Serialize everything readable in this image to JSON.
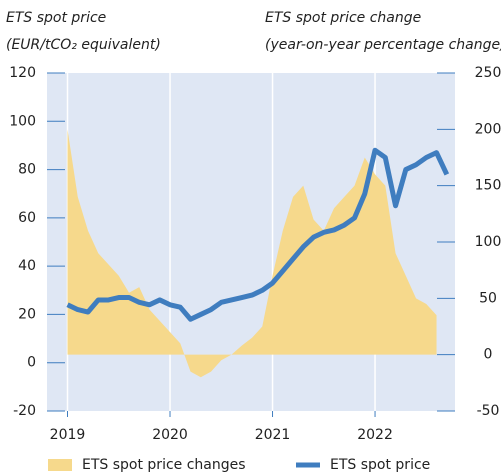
{
  "chart_data": {
    "type": "combo",
    "y_label": [
      "ETS spot price",
      "(EUR/tCO₂ equivalent)"
    ],
    "y2_label": [
      "ETS spot price change",
      "(year-on-year percentage change)"
    ],
    "xlim": [
      2018.8,
      2022.78
    ],
    "xticks": [
      2019,
      2020,
      2021,
      2022
    ],
    "ylim": [
      -20,
      120
    ],
    "yticks": [
      -20,
      0,
      20,
      40,
      60,
      80,
      100,
      120
    ],
    "y2lim": [
      -50,
      250
    ],
    "y2ticks": [
      -50,
      0,
      50,
      100,
      150,
      200,
      250
    ],
    "grid": "x",
    "series": [
      {
        "name": "ETS spot price changes",
        "type": "area",
        "axis": "y2",
        "color": "#f6d98c",
        "x": [
          2019.0,
          2019.1,
          2019.2,
          2019.3,
          2019.4,
          2019.5,
          2019.6,
          2019.7,
          2019.8,
          2019.9,
          2020.0,
          2020.1,
          2020.2,
          2020.3,
          2020.4,
          2020.5,
          2020.6,
          2020.7,
          2020.8,
          2020.9,
          2021.0,
          2021.1,
          2021.2,
          2021.3,
          2021.4,
          2021.5,
          2021.6,
          2021.7,
          2021.8,
          2021.9,
          2022.0,
          2022.1,
          2022.2,
          2022.3,
          2022.4,
          2022.5,
          2022.6
        ],
        "values": [
          200,
          140,
          110,
          90,
          80,
          70,
          55,
          60,
          40,
          30,
          20,
          10,
          -15,
          -20,
          -15,
          -5,
          0,
          8,
          15,
          25,
          70,
          110,
          140,
          150,
          120,
          110,
          130,
          140,
          150,
          175,
          160,
          150,
          90,
          70,
          50,
          45,
          35
        ]
      },
      {
        "name": "ETS spot price",
        "type": "line",
        "axis": "y",
        "color": "#3f7dbf",
        "x": [
          2019.0,
          2019.1,
          2019.2,
          2019.3,
          2019.4,
          2019.5,
          2019.6,
          2019.7,
          2019.8,
          2019.9,
          2020.0,
          2020.1,
          2020.2,
          2020.3,
          2020.4,
          2020.5,
          2020.6,
          2020.7,
          2020.8,
          2020.9,
          2021.0,
          2021.1,
          2021.2,
          2021.3,
          2021.4,
          2021.5,
          2021.6,
          2021.7,
          2021.8,
          2021.9,
          2022.0,
          2022.1,
          2022.2,
          2022.3,
          2022.4,
          2022.5,
          2022.6,
          2022.7
        ],
        "values": [
          24,
          22,
          21,
          26,
          26,
          27,
          27,
          25,
          24,
          26,
          24,
          23,
          18,
          20,
          22,
          25,
          26,
          27,
          28,
          30,
          33,
          38,
          43,
          48,
          52,
          54,
          55,
          57,
          60,
          70,
          88,
          85,
          65,
          80,
          82,
          85,
          87,
          78
        ]
      }
    ]
  }
}
